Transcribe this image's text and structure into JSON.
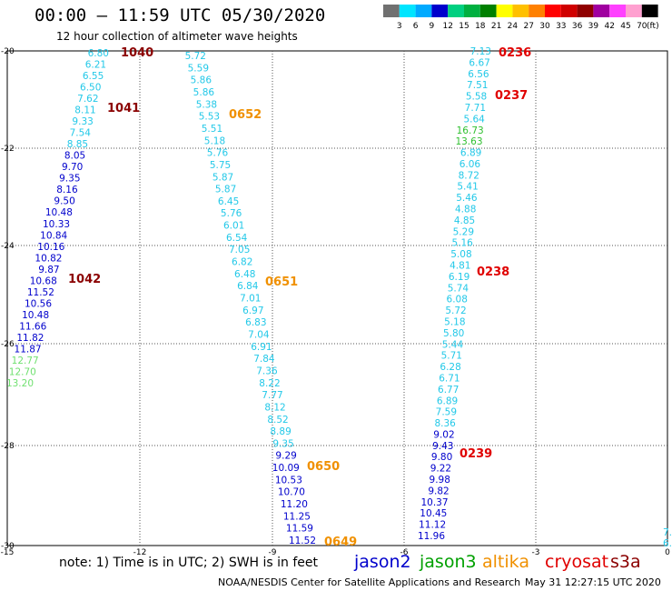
{
  "header": {
    "title": "00:00 – 11:59 UTC 05/30/2020",
    "subtitle": "12 hour collection of altimeter wave heights"
  },
  "color_scale": {
    "swatches": [
      "#707070",
      "#00e5ff",
      "#00aaff",
      "#0000cc",
      "#00d080",
      "#00b040",
      "#008000",
      "#ffff00",
      "#ffc000",
      "#ff8000",
      "#ff0000",
      "#d00000",
      "#900000",
      "#a000a0",
      "#ff40ff",
      "#ffa0d0",
      "#000000"
    ],
    "labels": [
      "3",
      "6",
      "9",
      "12",
      "15",
      "18",
      "21",
      "24",
      "27",
      "30",
      "33",
      "36",
      "39",
      "42",
      "45",
      "70"
    ],
    "unit": "(ft)"
  },
  "axes": {
    "x_ticks": [
      "-15",
      "-12",
      "-9",
      "-6",
      "-3",
      "0"
    ],
    "y_ticks": [
      "-20",
      "-22",
      "-24",
      "-26",
      "-28",
      "-30"
    ]
  },
  "colors": {
    "cyan": "#22c8e8",
    "blue": "#0000cc",
    "green": "#30c030",
    "lightgreen": "#70e070",
    "darkred": "#8b0000",
    "red": "#e00000",
    "orange": "#f09000"
  },
  "tracks": [
    {
      "label": "1040",
      "label_color": "darkred",
      "values": [
        "6.80",
        "6.21",
        "6.55",
        "6.50",
        "7.62",
        "8.11",
        "9.33",
        "7.54",
        "8.85",
        "8.05",
        "9.70",
        "9.35",
        "8.16",
        "9.50",
        "10.48",
        "10.33",
        "10.84",
        "10.16",
        "10.82",
        "9.87",
        "10.68",
        "11.52",
        "10.56",
        "10.48",
        "11.66",
        "11.82",
        "11.87",
        "12.77",
        "12.70",
        "13.20"
      ]
    },
    {
      "label": "1041",
      "label_color": "darkred"
    },
    {
      "label": "1042",
      "label_color": "darkred"
    },
    {
      "label": "0652",
      "label_color": "orange",
      "values": [
        "5.72",
        "5.59",
        "5.86",
        "5.86",
        "5.38",
        "5.53",
        "5.51",
        "5.18",
        "5.76",
        "5.75",
        "5.87",
        "5.87",
        "6.45",
        "5.76",
        "6.01",
        "6.54",
        "7.05",
        "6.82",
        "6.48",
        "6.84",
        "7.01",
        "6.97",
        "6.83",
        "7.04",
        "6.91",
        "7.84",
        "7.36",
        "8.22",
        "7.77",
        "8.12",
        "8.52",
        "8.89",
        "9.35",
        "9.29",
        "10.09",
        "10.53",
        "10.70",
        "11.20",
        "11.25",
        "11.59",
        "11.52"
      ]
    },
    {
      "label": "0651",
      "label_color": "orange"
    },
    {
      "label": "0650",
      "label_color": "orange"
    },
    {
      "label": "0649",
      "label_color": "orange"
    },
    {
      "label": "0236",
      "label_color": "red",
      "values": [
        "7.13",
        "6.67",
        "6.56",
        "7.51",
        "5.58",
        "7.71",
        "5.64",
        "16.73",
        "13.63",
        "6.89",
        "6.06",
        "8.72",
        "5.41",
        "5.46",
        "4.88",
        "4.85",
        "5.29",
        "5.16",
        "5.08",
        "4.81",
        "6.19",
        "5.74",
        "6.08",
        "5.72",
        "5.18",
        "5.80",
        "5.44",
        "5.71",
        "6.28",
        "6.71",
        "6.77",
        "6.89",
        "7.59",
        "8.36",
        "9.02",
        "9.43",
        "9.80",
        "9.22",
        "9.98",
        "9.82",
        "10.37",
        "10.45",
        "11.12",
        "11.96"
      ]
    },
    {
      "label": "0237",
      "label_color": "red"
    },
    {
      "label": "0238",
      "label_color": "red"
    },
    {
      "label": "0239",
      "label_color": "red"
    }
  ],
  "edge_values": [
    "7.",
    "6."
  ],
  "footer": {
    "note": "note:  1) Time is in UTC;  2) SWH is in feet",
    "legend": [
      {
        "name": "jason2",
        "color": "#0000cc"
      },
      {
        "name": "jason3",
        "color": "#00a000"
      },
      {
        "name": "altika",
        "color": "#f09000"
      },
      {
        "name": "cryosat",
        "color": "#e00000"
      },
      {
        "name": "s3a",
        "color": "#8b0000"
      }
    ],
    "credit": "NOAA/NESDIS Center for Satellite Applications and Research",
    "timestamp": "May 31 12:27:15 UTC 2020"
  }
}
